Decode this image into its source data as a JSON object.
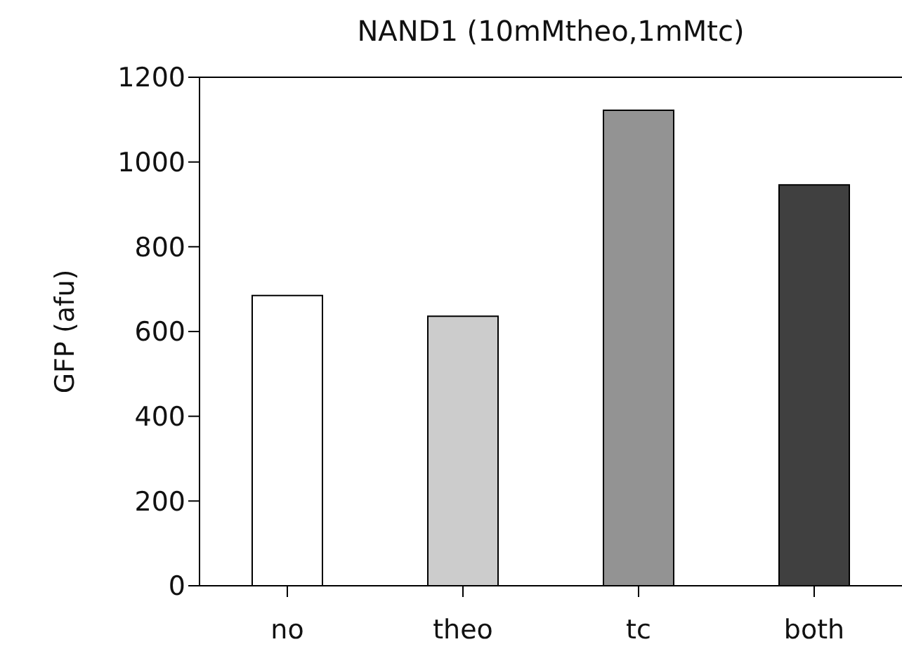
{
  "chart_data": {
    "type": "bar",
    "title": "NAND1 (10mMtheo,1mMtc)",
    "ylabel": "GFP (afu)",
    "categories": [
      "no",
      "theo",
      "tc",
      "both"
    ],
    "values": [
      685,
      636,
      1122,
      946
    ],
    "colors": [
      "#ffffff",
      "#cccccc",
      "#939393",
      "#404040"
    ],
    "ylim": [
      0,
      1200
    ],
    "yticks": [
      0,
      200,
      400,
      600,
      800,
      1000,
      1200
    ],
    "grid": false,
    "legend": false
  }
}
